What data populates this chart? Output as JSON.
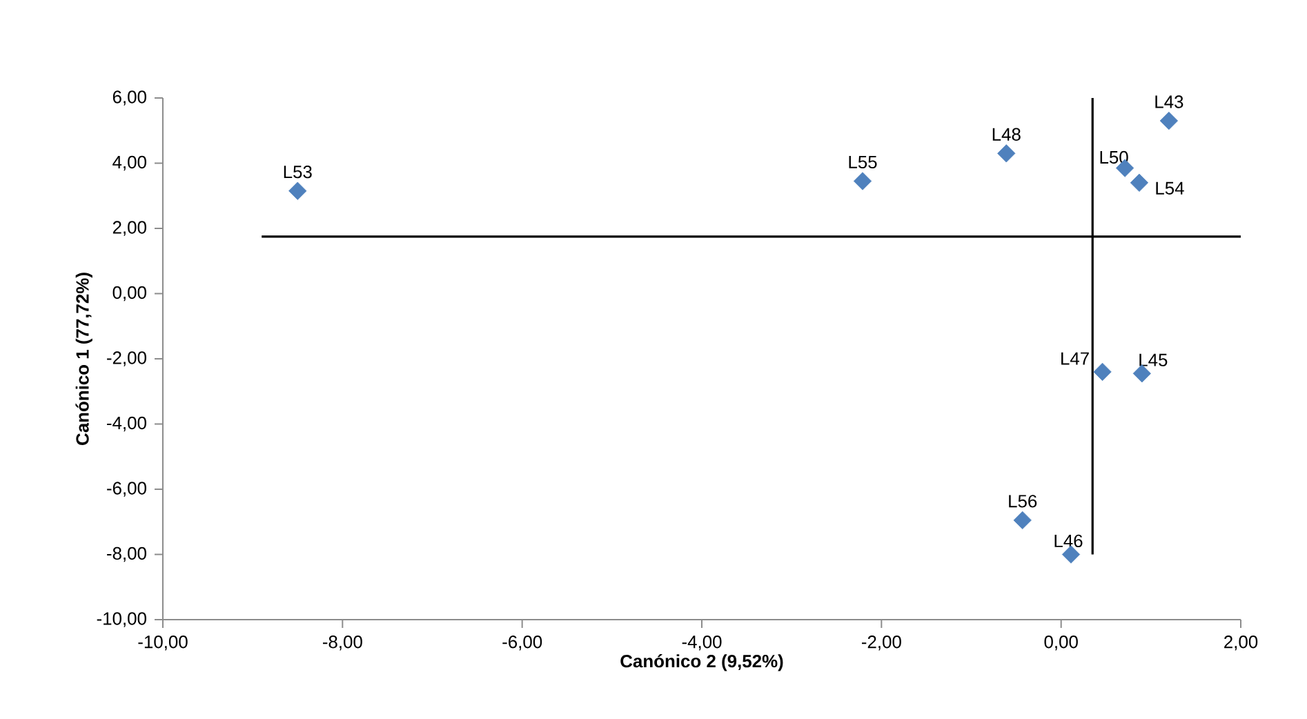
{
  "chart_data": {
    "type": "scatter",
    "xlabel": "Canónico  2 (9,52%)",
    "ylabel": "Canónico  1 (77,72%)",
    "x": [
      -8.5,
      -2.21,
      -0.61,
      0.71,
      0.87,
      1.2,
      0.46,
      0.9,
      -0.43,
      0.11
    ],
    "values": [
      3.15,
      3.45,
      4.3,
      3.85,
      3.4,
      5.3,
      -2.4,
      -2.45,
      -6.95,
      -8.0
    ],
    "color": "#4f81bd",
    "marker": "diamond",
    "xlim": [
      -10,
      2
    ],
    "ylim": [
      -10,
      6
    ],
    "xticks": [
      {
        "value": -10,
        "label": "-10,00"
      },
      {
        "value": -8,
        "label": "-8,00"
      },
      {
        "value": -6,
        "label": "-6,00"
      },
      {
        "value": -4,
        "label": "-4,00"
      },
      {
        "value": -2,
        "label": "-2,00"
      },
      {
        "value": 0,
        "label": "0,00"
      },
      {
        "value": 2,
        "label": "2,00"
      }
    ],
    "yticks": [
      {
        "value": -10,
        "label": "-10,00"
      },
      {
        "value": -8,
        "label": "-8,00"
      },
      {
        "value": -6,
        "label": "-6,00"
      },
      {
        "value": -4,
        "label": "-4,00"
      },
      {
        "value": -2,
        "label": "-2,00"
      },
      {
        "value": 0,
        "label": "0,00"
      },
      {
        "value": 2,
        "label": "2,00"
      },
      {
        "value": 4,
        "label": "4,00"
      },
      {
        "value": 6,
        "label": "6,00"
      }
    ],
    "ref_lines": [
      {
        "axis": "y",
        "value": 1.75,
        "color": "#000000"
      },
      {
        "axis": "x",
        "value": 0.35,
        "color": "#000000"
      }
    ],
    "annotations": [
      {
        "text": "L53",
        "x": -8.5,
        "y": 3.15
      },
      {
        "text": "L55",
        "x": -2.21,
        "y": 3.45
      },
      {
        "text": "L48",
        "x": -0.61,
        "y": 4.3
      },
      {
        "text": "L50",
        "x": 0.71,
        "y": 3.85
      },
      {
        "text": "L54",
        "x": 0.87,
        "y": 3.4
      },
      {
        "text": "L43",
        "x": 1.2,
        "y": 5.3
      },
      {
        "text": "L47",
        "x": 0.46,
        "y": -2.4
      },
      {
        "text": "L45",
        "x": 0.9,
        "y": -2.45
      },
      {
        "text": "L56",
        "x": -0.43,
        "y": -6.95
      },
      {
        "text": "L46",
        "x": 0.11,
        "y": -8.0
      }
    ]
  }
}
